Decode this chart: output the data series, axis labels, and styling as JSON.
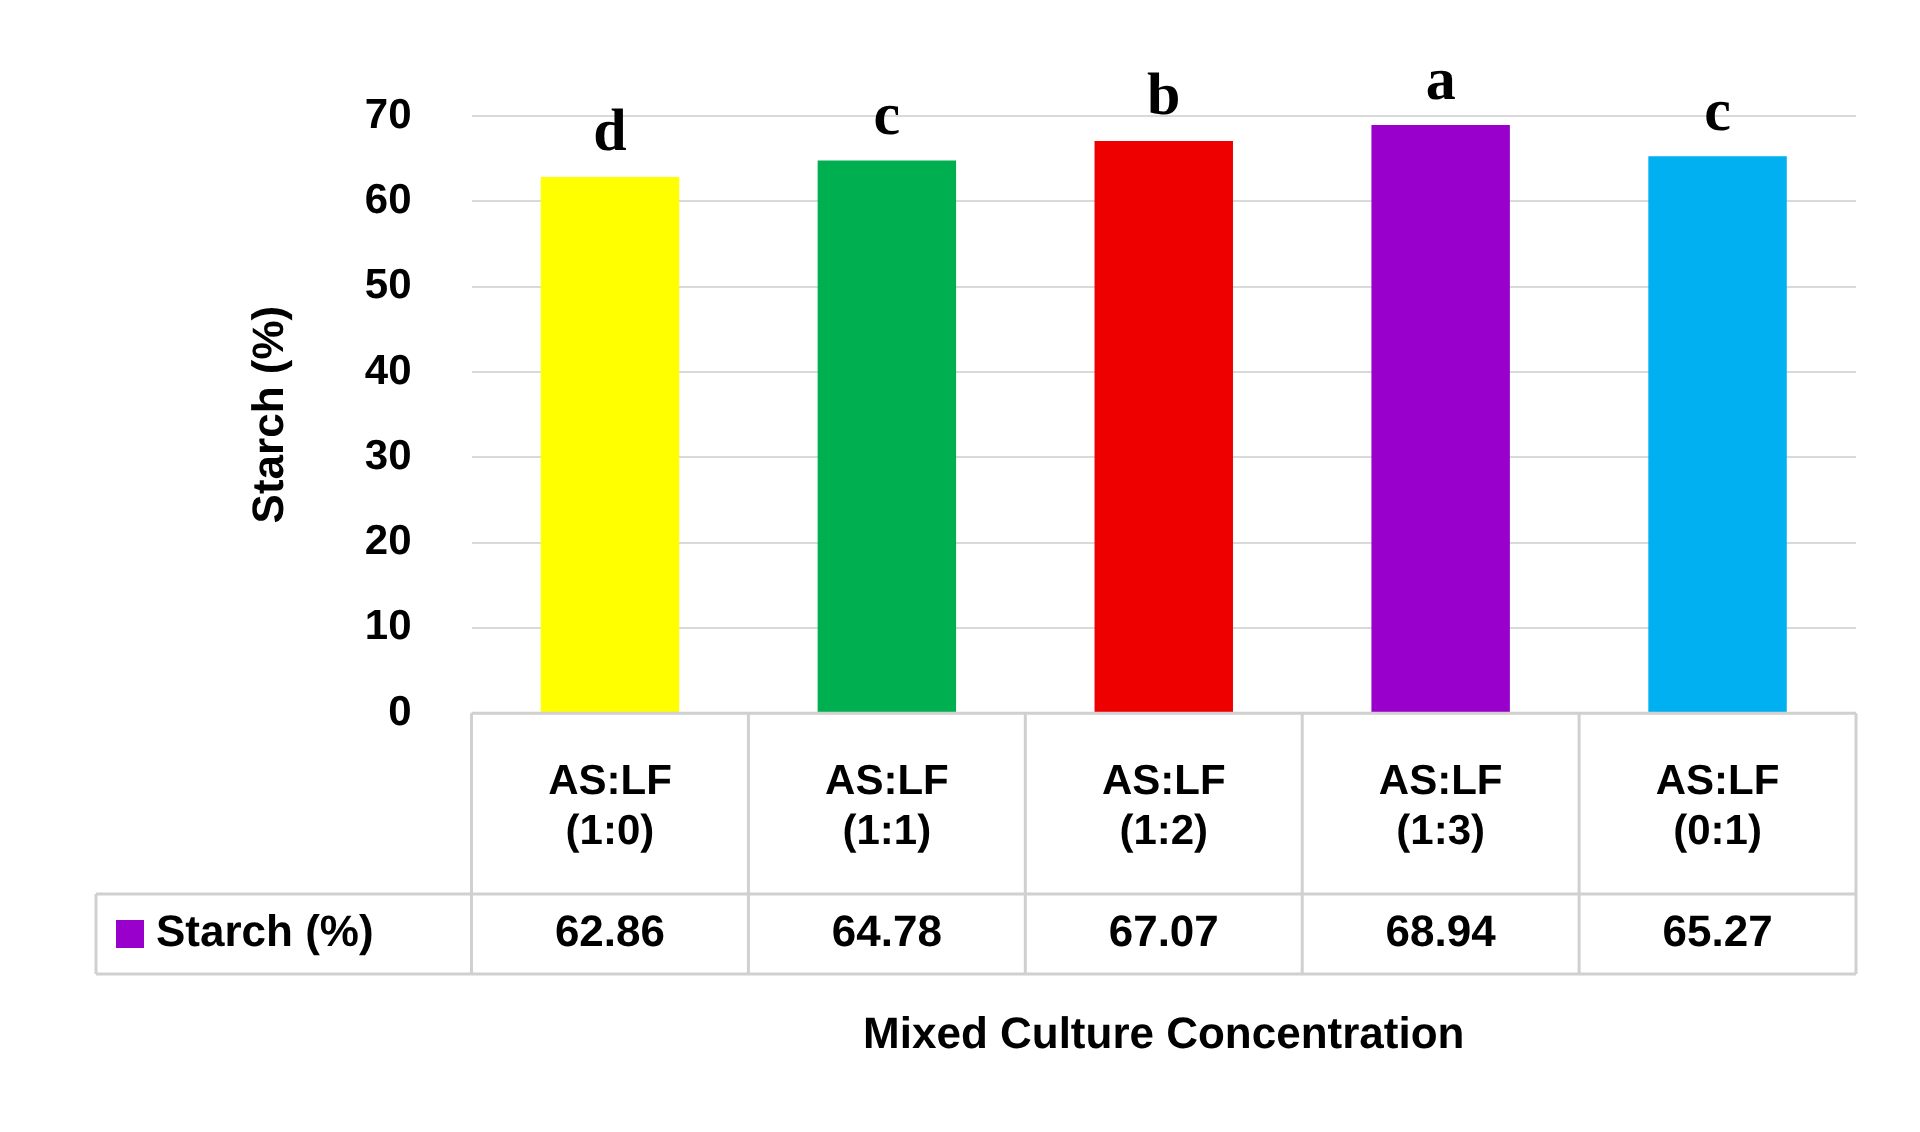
{
  "chart_data": {
    "type": "bar",
    "ylabel": "Starch (%)",
    "xlabel": "Mixed Culture Concentration",
    "categories": [
      "AS:LF (1:0)",
      "AS:LF (1:1)",
      "AS:LF (1:2)",
      "AS:LF (1:3)",
      "AS:LF (0:1)"
    ],
    "series": [
      {
        "name": "Starch (%)",
        "color": "#9900cc",
        "colors": [
          "#ffff00",
          "#00b050",
          "#ee0000",
          "#9900cc",
          "#00b0f0"
        ],
        "values": [
          62.86,
          64.78,
          67.07,
          68.94,
          65.27
        ]
      }
    ],
    "ylim": [
      0,
      70
    ],
    "yticks": [
      0,
      10,
      20,
      30,
      40,
      50,
      60,
      70
    ],
    "grid": "y",
    "legend": "bottom",
    "data_labels": true,
    "annotations": [
      {
        "text": "d",
        "x": "AS:LF (1:0)",
        "y": 62.86
      },
      {
        "text": "c",
        "x": "AS:LF (1:1)",
        "y": 64.78
      },
      {
        "text": "b",
        "x": "AS:LF (1:2)",
        "y": 67.07
      },
      {
        "text": "a",
        "x": "AS:LF (1:3)",
        "y": 68.94
      },
      {
        "text": "c",
        "x": "AS:LF (0:1)",
        "y": 65.27
      }
    ]
  }
}
